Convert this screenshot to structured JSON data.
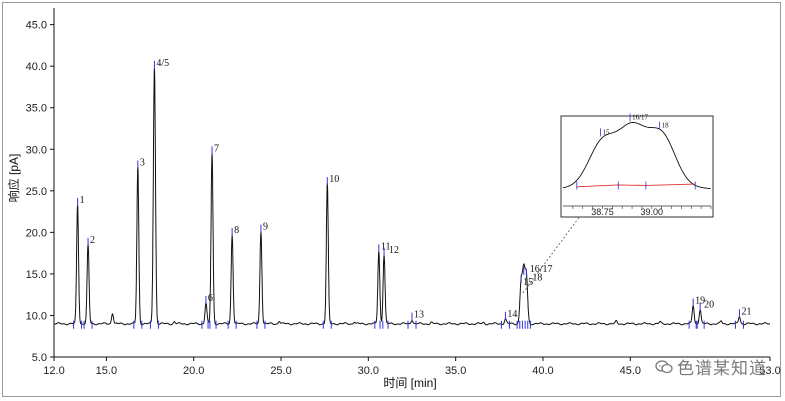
{
  "chart_data": {
    "type": "line",
    "title": "",
    "xlabel": "时间 [min]",
    "ylabel": "响应 [pA]",
    "xlim": [
      12.0,
      53.0
    ],
    "ylim": [
      5.0,
      47.0
    ],
    "x_ticks": [
      "12.0",
      "15.0",
      "20.0",
      "25.0",
      "30.0",
      "35.0",
      "40.0",
      "45.0",
      "53.0"
    ],
    "y_ticks": [
      "5.0",
      "10.0",
      "15.0",
      "20.0",
      "25.0",
      "30.0",
      "35.0",
      "40.0",
      "45.0"
    ],
    "baseline": 9.0,
    "peaks": [
      {
        "label": "1",
        "rt": 13.35,
        "height": 23.3
      },
      {
        "label": "2",
        "rt": 13.95,
        "height": 18.5
      },
      {
        "label": "",
        "rt": 15.35,
        "height": 10.3
      },
      {
        "label": "3",
        "rt": 16.8,
        "height": 27.8
      },
      {
        "label": "4/5",
        "rt": 17.75,
        "height": 39.8
      },
      {
        "label": "6",
        "rt": 20.7,
        "height": 11.5
      },
      {
        "label": "7",
        "rt": 21.05,
        "height": 29.5
      },
      {
        "label": "8",
        "rt": 22.2,
        "height": 19.7
      },
      {
        "label": "9",
        "rt": 23.85,
        "height": 20.1
      },
      {
        "label": "10",
        "rt": 27.65,
        "height": 25.8
      },
      {
        "label": "11",
        "rt": 30.6,
        "height": 17.7
      },
      {
        "label": "12",
        "rt": 30.9,
        "height": 17.3
      },
      {
        "label": "13",
        "rt": 32.5,
        "height": 9.5
      },
      {
        "label": "14",
        "rt": 37.85,
        "height": 9.6
      },
      {
        "label": "15",
        "rt": 38.75,
        "height": 14.0
      },
      {
        "label": "16/17",
        "rt": 38.9,
        "height": 15.0
      },
      {
        "label": "18",
        "rt": 39.05,
        "height": 14.7
      },
      {
        "label": "19",
        "rt": 48.6,
        "height": 11.2
      },
      {
        "label": "20",
        "rt": 49.0,
        "height": 10.7
      },
      {
        "label": "21",
        "rt": 51.25,
        "height": 9.9
      }
    ],
    "inset": {
      "xlim": [
        38.55,
        39.3
      ],
      "x_ticks": [
        "38.75",
        "39.00"
      ],
      "peak_labels": [
        "15",
        "16/17",
        "18"
      ]
    }
  },
  "watermark": {
    "text": "色谱某知道",
    "icon": "chat-bubbles-icon"
  },
  "colors": {
    "trace": "#111111",
    "baseline_marker": "#3333dd",
    "inset_baseline": "#e03030"
  }
}
